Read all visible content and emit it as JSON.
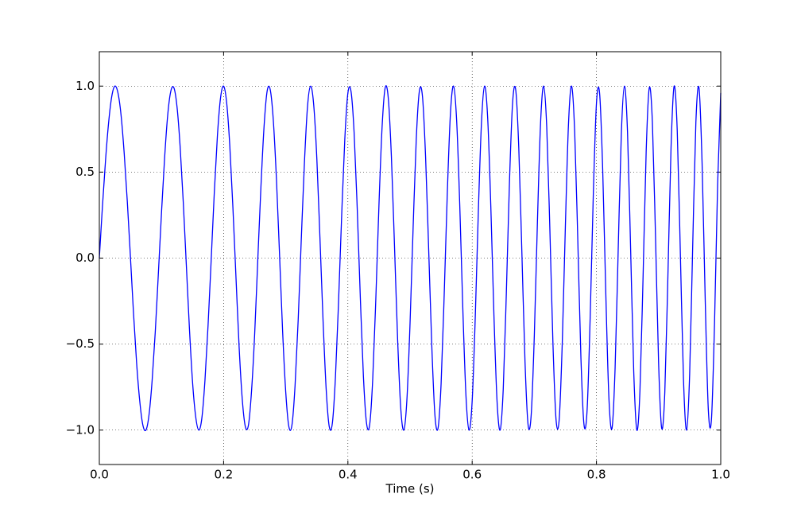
{
  "chart_data": {
    "type": "line",
    "xlabel": "Time (s)",
    "x": [
      0,
      0.005,
      0.01,
      0.015,
      0.02,
      0.025,
      0.03,
      0.035,
      0.04,
      0.045,
      0.05,
      0.055,
      0.06,
      0.065,
      0.07,
      0.075,
      0.08,
      0.085,
      0.09,
      0.095,
      0.1,
      0.105,
      0.11,
      0.115,
      0.12,
      0.125,
      0.13,
      0.135,
      0.14,
      0.145,
      0.15,
      0.155,
      0.16,
      0.165,
      0.17,
      0.175,
      0.18,
      0.185,
      0.19,
      0.195,
      0.2,
      0.205,
      0.21,
      0.215,
      0.22,
      0.225,
      0.23,
      0.235,
      0.24,
      0.245,
      0.25,
      0.255,
      0.26,
      0.265,
      0.27,
      0.275,
      0.28,
      0.285,
      0.29,
      0.295,
      0.3,
      0.305,
      0.31,
      0.315,
      0.32,
      0.325,
      0.33,
      0.335,
      0.34,
      0.345,
      0.35,
      0.355,
      0.36,
      0.365,
      0.37,
      0.375,
      0.38,
      0.385,
      0.39,
      0.395,
      0.4,
      0.405,
      0.41,
      0.415,
      0.42,
      0.425,
      0.43,
      0.435,
      0.44,
      0.445,
      0.45,
      0.455,
      0.46,
      0.465,
      0.47,
      0.475,
      0.48,
      0.485,
      0.49,
      0.495,
      0.5,
      0.505,
      0.51,
      0.515,
      0.52,
      0.525,
      0.53,
      0.535,
      0.54,
      0.545,
      0.55,
      0.555,
      0.56,
      0.565,
      0.57,
      0.575,
      0.58,
      0.585,
      0.59,
      0.595,
      0.6,
      0.605,
      0.61,
      0.615,
      0.62,
      0.625,
      0.63,
      0.635,
      0.64,
      0.645,
      0.65,
      0.655,
      0.66,
      0.665,
      0.67,
      0.675,
      0.68,
      0.685,
      0.69,
      0.695,
      0.7,
      0.705,
      0.71,
      0.715,
      0.72,
      0.725,
      0.73,
      0.735,
      0.74,
      0.745,
      0.75,
      0.755,
      0.76,
      0.765,
      0.77,
      0.775,
      0.78,
      0.785,
      0.79,
      0.795,
      0.8,
      0.805,
      0.81,
      0.815,
      0.82,
      0.825,
      0.83,
      0.835,
      0.84,
      0.845,
      0.85,
      0.855,
      0.86,
      0.865,
      0.87,
      0.875,
      0.88,
      0.885,
      0.89,
      0.895,
      0.9,
      0.905,
      0.91,
      0.915,
      0.92,
      0.925,
      0.93,
      0.935,
      0.94,
      0.945,
      0.95,
      0.955,
      0.96,
      0.965,
      0.97,
      0.975,
      0.98,
      0.985,
      0.99,
      0.995,
      1.0
    ],
    "series": [
      {
        "color": "#0000ff",
        "values": [
          0,
          0.3,
          0.57,
          0.79,
          0.94,
          1.0,
          0.96,
          0.83,
          0.61,
          0.33,
          0.01,
          -0.32,
          -0.61,
          -0.83,
          -0.97,
          -1.0,
          -0.91,
          -0.71,
          -0.43,
          -0.09,
          0.26,
          0.58,
          0.83,
          0.97,
          0.99,
          0.88,
          0.65,
          0.33,
          -0.04,
          -0.41,
          -0.72,
          -0.92,
          -1.0,
          -0.93,
          -0.71,
          -0.39,
          -0.01,
          0.38,
          0.71,
          0.93,
          1.0,
          0.9,
          0.65,
          0.29,
          -0.12,
          -0.52,
          -0.82,
          -0.98,
          -0.97,
          -0.77,
          -0.44,
          -0.01,
          0.41,
          0.76,
          0.97,
          0.98,
          0.8,
          0.46,
          0.02,
          -0.43,
          -0.78,
          -0.98,
          -0.97,
          -0.74,
          -0.36,
          0.11,
          0.55,
          0.88,
          1.0,
          0.89,
          0.58,
          0.12,
          -0.36,
          -0.76,
          -0.98,
          -0.96,
          -0.69,
          -0.25,
          0.25,
          0.69,
          0.96,
          0.97,
          0.73,
          0.29,
          -0.23,
          -0.69,
          -0.96,
          -0.97,
          -0.7,
          -0.23,
          0.31,
          0.76,
          0.99,
          0.93,
          0.59,
          0.07,
          -0.47,
          -0.87,
          -1.0,
          -0.82,
          -0.38,
          0.18,
          0.69,
          0.97,
          0.94,
          0.59,
          0.05,
          -0.51,
          -0.91,
          -0.99,
          -0.73,
          -0.21,
          0.38,
          0.84,
          1.0,
          0.8,
          0.31,
          -0.3,
          -0.8,
          -1.0,
          -0.83,
          -0.34,
          0.28,
          0.79,
          1.0,
          0.81,
          0.3,
          -0.33,
          -0.83,
          -1.0,
          -0.76,
          -0.2,
          0.44,
          0.9,
          0.98,
          0.64,
          0.03,
          -0.6,
          -0.97,
          -0.91,
          -0.45,
          0.21,
          0.78,
          1.0,
          0.76,
          0.17,
          -0.5,
          -0.94,
          -0.94,
          -0.49,
          0.19,
          0.78,
          1.0,
          0.73,
          0.1,
          -0.58,
          -0.97,
          -0.88,
          -0.33,
          0.38,
          0.9,
          0.96,
          0.52,
          -0.2,
          -0.81,
          -0.99,
          -0.64,
          0.05,
          0.72,
          1.0,
          0.73,
          0.05,
          -0.66,
          -1.0,
          -0.77,
          -0.11,
          0.62,
          0.99,
          0.79,
          0.13,
          -0.61,
          -0.99,
          -0.78,
          -0.1,
          0.64,
          1.0,
          0.74,
          0.03,
          -0.7,
          -1.0,
          -0.67,
          0.09,
          0.79,
          0.99,
          0.55,
          -0.24,
          -0.88,
          -0.94,
          -0.38,
          0.43,
          0.96
        ]
      }
    ],
    "xlim": [
      0,
      1
    ],
    "xticks": [
      {
        "value": 0,
        "label": "0.0"
      },
      {
        "value": 0.2,
        "label": "0.2"
      },
      {
        "value": 0.4,
        "label": "0.4"
      },
      {
        "value": 0.6,
        "label": "0.6"
      },
      {
        "value": 0.8,
        "label": "0.8"
      },
      {
        "value": 1,
        "label": "1.0"
      }
    ],
    "ylim": [
      -1.2,
      1.2
    ],
    "yticks": [
      {
        "value": -1,
        "label": "−1.0"
      },
      {
        "value": -0.5,
        "label": "−0.5"
      },
      {
        "value": 0,
        "label": "0.0"
      },
      {
        "value": 0.5,
        "label": "0.5"
      },
      {
        "value": 1,
        "label": "1.0"
      }
    ],
    "grid": true
  }
}
